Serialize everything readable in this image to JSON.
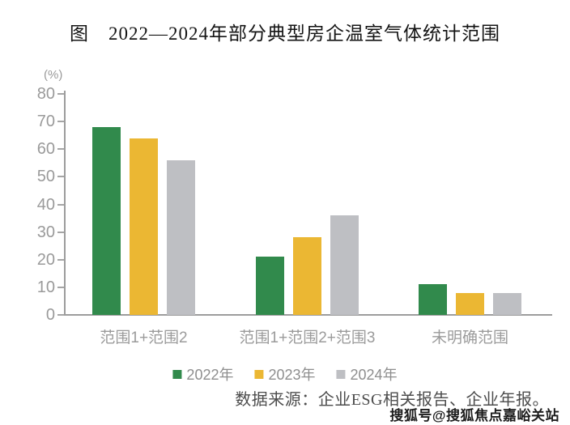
{
  "figure": {
    "source_note": "数据来源：企业ESG相关报告、企业年报。",
    "watermark": "搜狐号@搜狐焦点嘉峪关站"
  },
  "chart_data": {
    "type": "bar",
    "title": "图　2022—2024年部分典型房企温室气体统计范围",
    "unit_label": "(%)",
    "categories": [
      "范围1+范围2",
      "范围1+范围2+范围3",
      "未明确范围"
    ],
    "series": [
      {
        "name": "2022年",
        "color": "#318A4C",
        "values": [
          68,
          21,
          11
        ]
      },
      {
        "name": "2023年",
        "color": "#EBB733",
        "values": [
          64,
          28,
          8
        ]
      },
      {
        "name": "2024年",
        "color": "#BEBFC3",
        "values": [
          56,
          36,
          8
        ]
      }
    ],
    "ylim": [
      0,
      80
    ],
    "ytick_step": 10,
    "grid": false,
    "legend_position": "bottom",
    "axis_color": "#9C9C9C",
    "label_color": "#9B9B9B"
  }
}
